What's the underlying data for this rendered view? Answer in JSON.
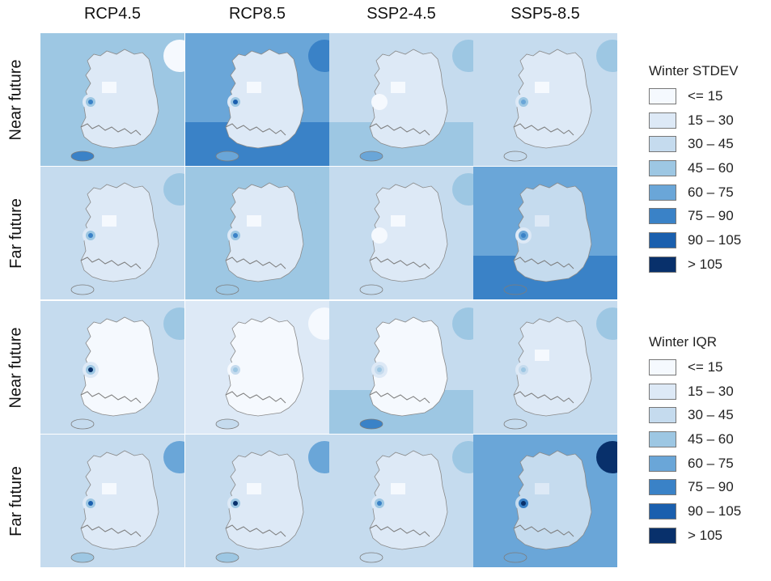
{
  "columns": [
    "RCP4.5",
    "RCP8.5",
    "SSP2-4.5",
    "SSP5-8.5"
  ],
  "rows": [
    "Near future",
    "Far future",
    "Near future",
    "Far future"
  ],
  "palette": [
    "#f5f9fe",
    "#dde9f6",
    "#c5dbee",
    "#9dc7e3",
    "#6aa6d8",
    "#3a82c7",
    "#1a5fae",
    "#08306b"
  ],
  "legend_stdev": {
    "title": "Winter STDEV",
    "labels": [
      "<= 15",
      "15 – 30",
      "30 – 45",
      "45 – 60",
      "60 – 75",
      "75 – 90",
      "90 – 105",
      "> 105"
    ]
  },
  "legend_iqr": {
    "title": "Winter IQR",
    "labels": [
      "<= 15",
      "15 – 30",
      "30 – 45",
      "45 – 60",
      "60 – 75",
      "75 – 90",
      "90 – 105",
      "> 105"
    ]
  },
  "map_grid": [
    [
      {
        "bg": 3,
        "land": 1,
        "south": 3,
        "ring": [
          1,
          3,
          5
        ],
        "east": 0,
        "jeju": 5
      },
      {
        "bg": 4,
        "land": 1,
        "south": 5,
        "ring": [
          1,
          3,
          6
        ],
        "east": 5,
        "jeju": 4
      },
      {
        "bg": 2,
        "land": 1,
        "south": 3,
        "ring": [
          0,
          0,
          0
        ],
        "east": 3,
        "jeju": 4
      },
      {
        "bg": 2,
        "land": 1,
        "south": 2,
        "ring": [
          1,
          3,
          4
        ],
        "east": 3,
        "jeju": 2
      }
    ],
    [
      {
        "bg": 2,
        "land": 1,
        "south": 2,
        "ring": [
          1,
          3,
          5
        ],
        "east": 3,
        "jeju": 2
      },
      {
        "bg": 3,
        "land": 1,
        "south": 3,
        "ring": [
          1,
          3,
          5
        ],
        "east": 3,
        "jeju": 3
      },
      {
        "bg": 2,
        "land": 1,
        "south": 2,
        "ring": [
          0,
          0,
          0
        ],
        "east": 3,
        "jeju": 2
      },
      {
        "bg": 4,
        "land": 2,
        "south": 5,
        "ring": [
          1,
          4,
          5
        ],
        "east": 4,
        "jeju": 5
      }
    ],
    [
      {
        "bg": 2,
        "land": 0,
        "south": 2,
        "ring": [
          1,
          3,
          7
        ],
        "east": 3,
        "jeju": 2
      },
      {
        "bg": 1,
        "land": 0,
        "south": 1,
        "ring": [
          0,
          2,
          3
        ],
        "east": 0,
        "jeju": 2
      },
      {
        "bg": 2,
        "land": 0,
        "south": 3,
        "ring": [
          1,
          2,
          3
        ],
        "east": 3,
        "jeju": 5
      },
      {
        "bg": 2,
        "land": 1,
        "south": 2,
        "ring": [
          1,
          2,
          3
        ],
        "east": 3,
        "jeju": 2
      }
    ],
    [
      {
        "bg": 2,
        "land": 1,
        "south": 2,
        "ring": [
          1,
          3,
          6
        ],
        "east": 4,
        "jeju": 3
      },
      {
        "bg": 2,
        "land": 1,
        "south": 2,
        "ring": [
          1,
          3,
          7
        ],
        "east": 4,
        "jeju": 3
      },
      {
        "bg": 2,
        "land": 1,
        "south": 2,
        "ring": [
          1,
          3,
          5
        ],
        "east": 3,
        "jeju": 2
      },
      {
        "bg": 4,
        "land": 2,
        "south": 4,
        "ring": [
          2,
          5,
          7
        ],
        "east": 7,
        "jeju": 4
      }
    ]
  ]
}
